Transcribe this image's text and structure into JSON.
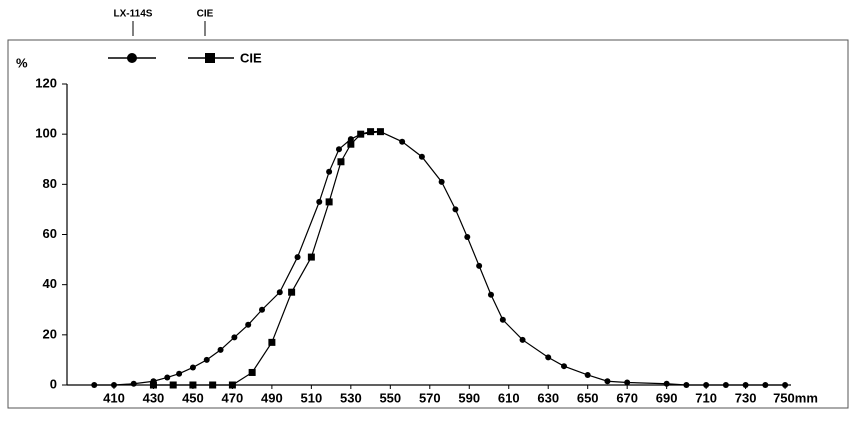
{
  "chart_data": {
    "type": "line",
    "y_label": "%",
    "xlim": [
      386.2,
      753
    ],
    "ylim": [
      0,
      120
    ],
    "xticks": [
      410,
      430,
      450,
      470,
      490,
      510,
      530,
      550,
      570,
      590,
      610,
      630,
      650,
      670,
      690,
      710,
      730,
      {
        "value": 750,
        "label": "750mm"
      }
    ],
    "yticks": [
      0,
      20,
      40,
      60,
      80,
      100,
      120
    ],
    "series": [
      {
        "name": "LX-114S",
        "color": "#000000",
        "marker": "circle",
        "x": [
          400,
          410,
          420,
          430,
          437,
          443,
          450,
          457,
          464,
          471,
          478,
          485,
          494,
          503,
          514,
          519,
          524,
          530,
          535,
          545,
          556,
          566,
          576,
          583,
          589,
          595,
          601,
          607,
          617,
          630,
          638,
          650,
          660,
          670,
          690,
          700,
          710,
          720,
          730,
          740,
          750
        ],
        "values": [
          0,
          0,
          0.5,
          1.5,
          3,
          4.5,
          7,
          10,
          14,
          19,
          24,
          30,
          37,
          51,
          73,
          85,
          94,
          98,
          100,
          101,
          97,
          91,
          81,
          70,
          59,
          47.5,
          36,
          26,
          18,
          11,
          7.5,
          4,
          1.5,
          1,
          0.5,
          0,
          0,
          0,
          0,
          0,
          0
        ]
      },
      {
        "name": "CIE",
        "color": "#000000",
        "marker": "square",
        "x": [
          430,
          440,
          450,
          460,
          470,
          480,
          490,
          500,
          510,
          519,
          525,
          530,
          535,
          540,
          545
        ],
        "values": [
          0,
          0,
          0,
          0,
          0,
          5,
          17,
          37,
          51,
          73,
          89,
          96,
          100,
          101,
          101
        ]
      }
    ]
  }
}
